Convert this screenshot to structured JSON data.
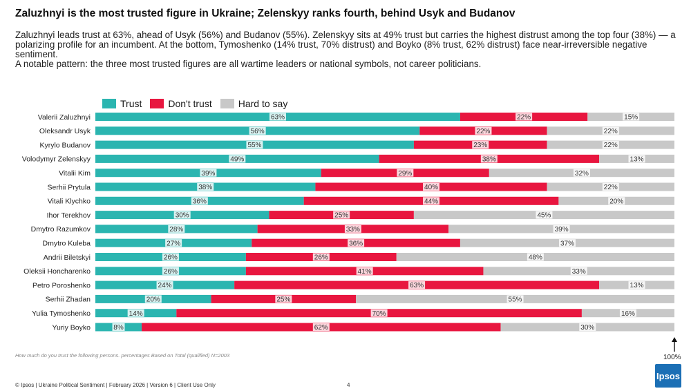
{
  "header": {
    "title": "Zaluzhnyi is the most trusted figure in Ukraine; Zelenskyy ranks fourth, behind Usyk and Budanov",
    "subtitle_line1": "Zaluzhnyi leads trust at 63%, ahead of Usyk (56%) and Budanov (55%). Zelenskyy sits at 49% trust but carries the highest distrust among the top four (38%) — a polarizing profile for an incumbent. At the bottom, Tymoshenko (14% trust, 70% distrust) and Boyko (8% trust, 62% distrust) face near-irreversible negative sentiment.",
    "subtitle_line2": "A notable pattern: the three most trusted figures are all wartime leaders or national symbols, not career politicians."
  },
  "chart_data": {
    "type": "bar",
    "orientation": "horizontal",
    "stacked": true,
    "categories": [
      "Valerii Zaluzhnyi",
      "Oleksandr Usyk",
      "Kyrylo Budanov",
      "Volodymyr Zelenskyy",
      "Vitalii Kim",
      "Serhii Prytula",
      "Vitali Klychko",
      "Ihor Terekhov",
      "Dmytro Razumkov",
      "Dmytro Kuleba",
      "Andrii Biletskyi",
      "Oleksii Honcharenko",
      "Petro Poroshenko",
      "Serhii Zhadan",
      "Yulia Tymoshenko",
      "Yuriy Boyko"
    ],
    "series": [
      {
        "name": "Trust",
        "color": "#2bb5b0",
        "values": [
          63,
          56,
          55,
          49,
          39,
          38,
          36,
          30,
          28,
          27,
          26,
          26,
          24,
          20,
          14,
          8
        ]
      },
      {
        "name": "Don't trust",
        "color": "#e8163f",
        "values": [
          22,
          22,
          23,
          38,
          29,
          40,
          44,
          25,
          33,
          36,
          26,
          41,
          63,
          25,
          70,
          62
        ]
      },
      {
        "name": "Hard to say",
        "color": "#c8c8c8",
        "values": [
          15,
          22,
          22,
          13,
          32,
          22,
          20,
          45,
          39,
          37,
          48,
          33,
          13,
          55,
          16,
          30
        ]
      }
    ],
    "xlim": [
      0,
      100
    ],
    "value_suffix": "%",
    "axis_max_label": "100%"
  },
  "footer": {
    "note": "How much do you trust the following persons. percentages Based on Total (qualified) N=2003",
    "source": "© Ipsos | Ukraine Political Sentiment | February 2026 | Version 6 | Client Use Only",
    "page_number": "4",
    "logo_text": "Ipsos"
  }
}
